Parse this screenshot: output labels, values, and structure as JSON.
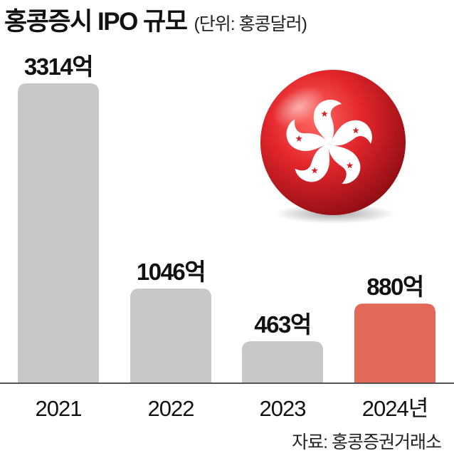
{
  "header": {
    "title": "홍콩증시 IPO 규모",
    "subtitle": "(단위: 홍콩달러)"
  },
  "source": "자료: 홍콩증권거래소",
  "colors": {
    "bar_default": "#c8c8c8",
    "bar_highlight": "#e2685a",
    "baseline": "#555555",
    "flag_red": "#d81f26"
  },
  "chart_data": {
    "type": "bar",
    "title": "홍콩증시 IPO 규모",
    "unit": "(단위: 홍콩달러)",
    "categories": [
      "2021",
      "2022",
      "2023",
      "2024년"
    ],
    "values": [
      3314,
      1046,
      463,
      880
    ],
    "value_labels": [
      "3314억",
      "1046억",
      "463억",
      "880억"
    ],
    "highlight_index": 3,
    "grid": false
  },
  "flag_icon": "hong-kong-bauhinia-flag-sphere"
}
